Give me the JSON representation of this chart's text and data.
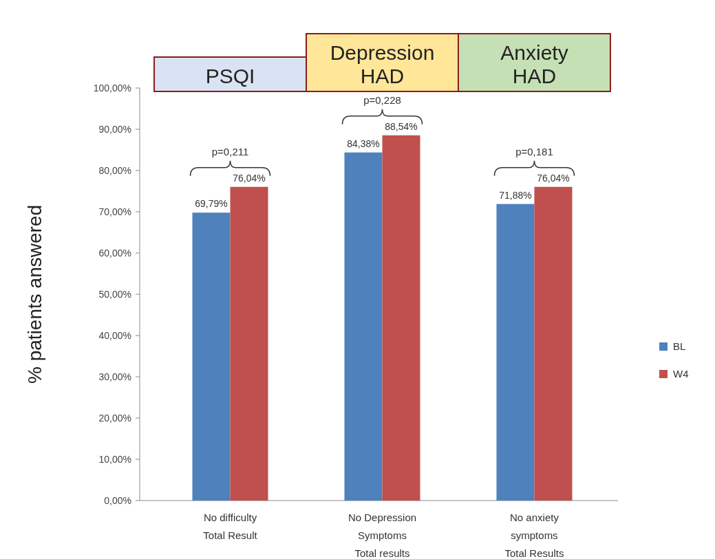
{
  "chart_data": {
    "type": "bar",
    "ylabel": "% patients answered",
    "categories": [
      "No difficulty\nTotal Result",
      "No Depression\nSymptoms\nTotal results",
      "No anxiety\nsymptoms\nTotal Results"
    ],
    "series": [
      {
        "name": "BL",
        "color": "#4f81bd",
        "values": [
          69.79,
          84.38,
          71.88
        ],
        "value_labels": [
          "69,79%",
          "84,38%",
          "71,88%"
        ]
      },
      {
        "name": "W4",
        "color": "#c0504d",
        "values": [
          76.04,
          88.54,
          76.04
        ],
        "value_labels": [
          "76,04%",
          "88,54%",
          "76,04%"
        ]
      }
    ],
    "ylim": [
      0,
      100
    ],
    "yticks": [
      {
        "value": 0,
        "label": "0,00%"
      },
      {
        "value": 10,
        "label": "10,00%"
      },
      {
        "value": 20,
        "label": "20,00%"
      },
      {
        "value": 30,
        "label": "30,00%"
      },
      {
        "value": 40,
        "label": "40,00%"
      },
      {
        "value": 50,
        "label": "50,00%"
      },
      {
        "value": 60,
        "label": "60,00%"
      },
      {
        "value": 70,
        "label": "70,00%"
      },
      {
        "value": 80,
        "label": "80,00%"
      },
      {
        "value": 90,
        "label": "90,00%"
      },
      {
        "value": 100,
        "label": "100,00%"
      }
    ],
    "annotations": [
      "PSQI",
      "Depression\nHAD",
      "Anxiety\nHAD",
      "p=0,211",
      "p=0,228",
      "p=0,181"
    ],
    "grid": false,
    "legend": "right"
  }
}
